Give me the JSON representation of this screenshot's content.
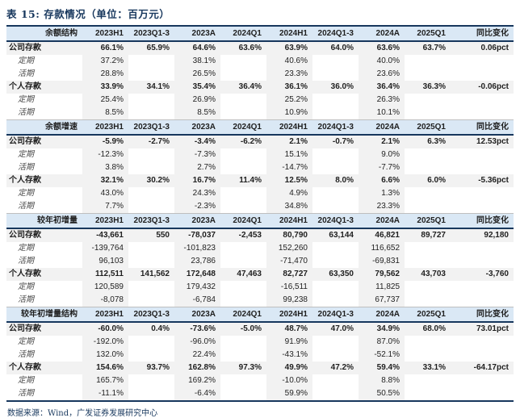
{
  "title": "表 15: 存款情况（单位：百万元）",
  "footer": {
    "text": "数据来源：Wind，广发证券发展研究中心"
  },
  "colors": {
    "title_navy": "#17375D",
    "header_band_blue": "#DAE8F5",
    "stripe_gray": "#F2F2F2",
    "rule_navy": "#17375D"
  },
  "table": {
    "columns": [
      "2023H1",
      "2023Q1-3",
      "2023A",
      "2024Q1",
      "2024H1",
      "2024Q1-3",
      "2024A",
      "2025Q1",
      "同比变化"
    ],
    "striped_columns": [
      0,
      2,
      4,
      6
    ],
    "sections": [
      {
        "label": "余额结构",
        "rows": [
          {
            "label": "公司存款",
            "bold": true,
            "values": [
              "66.1%",
              "65.9%",
              "64.6%",
              "63.6%",
              "63.9%",
              "64.0%",
              "63.6%",
              "63.7%",
              "0.06pct"
            ]
          },
          {
            "label": "定期",
            "bold": false,
            "values": [
              "37.2%",
              "",
              "38.1%",
              "",
              "40.6%",
              "",
              "40.0%",
              "",
              ""
            ]
          },
          {
            "label": "活期",
            "bold": false,
            "values": [
              "28.8%",
              "",
              "26.5%",
              "",
              "23.3%",
              "",
              "23.6%",
              "",
              ""
            ]
          },
          {
            "label": "个人存款",
            "bold": true,
            "values": [
              "33.9%",
              "34.1%",
              "35.4%",
              "36.4%",
              "36.1%",
              "36.0%",
              "36.4%",
              "36.3%",
              "-0.06pct"
            ]
          },
          {
            "label": "定期",
            "bold": false,
            "values": [
              "25.4%",
              "",
              "26.9%",
              "",
              "25.2%",
              "",
              "26.3%",
              "",
              ""
            ]
          },
          {
            "label": "活期",
            "bold": false,
            "values": [
              "8.5%",
              "",
              "8.5%",
              "",
              "10.9%",
              "",
              "10.1%",
              "",
              ""
            ]
          }
        ]
      },
      {
        "label": "余额增速",
        "rows": [
          {
            "label": "公司存款",
            "bold": true,
            "values": [
              "-5.9%",
              "-2.7%",
              "-3.4%",
              "-6.2%",
              "2.1%",
              "-0.7%",
              "2.1%",
              "6.3%",
              "12.53pct"
            ]
          },
          {
            "label": "定期",
            "bold": false,
            "values": [
              "-12.3%",
              "",
              "-7.3%",
              "",
              "15.1%",
              "",
              "9.0%",
              "",
              ""
            ]
          },
          {
            "label": "活期",
            "bold": false,
            "values": [
              "3.8%",
              "",
              "2.7%",
              "",
              "-14.7%",
              "",
              "-7.7%",
              "",
              ""
            ]
          },
          {
            "label": "个人存款",
            "bold": true,
            "values": [
              "32.1%",
              "30.2%",
              "16.7%",
              "11.4%",
              "12.5%",
              "8.0%",
              "6.6%",
              "6.0%",
              "-5.36pct"
            ]
          },
          {
            "label": "定期",
            "bold": false,
            "values": [
              "43.0%",
              "",
              "24.3%",
              "",
              "4.9%",
              "",
              "1.3%",
              "",
              ""
            ]
          },
          {
            "label": "活期",
            "bold": false,
            "values": [
              "7.7%",
              "",
              "-2.3%",
              "",
              "34.8%",
              "",
              "23.3%",
              "",
              ""
            ]
          }
        ]
      },
      {
        "label": "较年初增量",
        "rows": [
          {
            "label": "公司存款",
            "bold": true,
            "values": [
              "-43,661",
              "550",
              "-78,037",
              "-2,453",
              "80,790",
              "63,144",
              "46,821",
              "89,727",
              "92,180"
            ]
          },
          {
            "label": "定期",
            "bold": false,
            "values": [
              "-139,764",
              "",
              "-101,823",
              "",
              "152,260",
              "",
              "116,652",
              "",
              ""
            ]
          },
          {
            "label": "活期",
            "bold": false,
            "values": [
              "96,103",
              "",
              "23,786",
              "",
              "-71,470",
              "",
              "-69,831",
              "",
              ""
            ]
          },
          {
            "label": "个人存款",
            "bold": true,
            "values": [
              "112,511",
              "141,562",
              "172,648",
              "47,463",
              "82,727",
              "63,350",
              "79,562",
              "43,703",
              "-3,760"
            ]
          },
          {
            "label": "定期",
            "bold": false,
            "values": [
              "120,589",
              "",
              "179,432",
              "",
              "-16,511",
              "",
              "11,825",
              "",
              ""
            ]
          },
          {
            "label": "活期",
            "bold": false,
            "values": [
              "-8,078",
              "",
              "-6,784",
              "",
              "99,238",
              "",
              "67,737",
              "",
              ""
            ]
          }
        ]
      },
      {
        "label": "较年初增量结构",
        "rows": [
          {
            "label": "公司存款",
            "bold": true,
            "values": [
              "-60.0%",
              "0.4%",
              "-73.6%",
              "-5.0%",
              "48.7%",
              "47.0%",
              "34.9%",
              "68.0%",
              "73.01pct"
            ]
          },
          {
            "label": "定期",
            "bold": false,
            "values": [
              "-192.0%",
              "",
              "-96.0%",
              "",
              "91.9%",
              "",
              "87.0%",
              "",
              ""
            ]
          },
          {
            "label": "活期",
            "bold": false,
            "values": [
              "132.0%",
              "",
              "22.4%",
              "",
              "-43.1%",
              "",
              "-52.1%",
              "",
              ""
            ]
          },
          {
            "label": "个人存款",
            "bold": true,
            "values": [
              "154.6%",
              "93.7%",
              "162.8%",
              "97.3%",
              "49.9%",
              "47.2%",
              "59.4%",
              "33.1%",
              "-64.17pct"
            ]
          },
          {
            "label": "定期",
            "bold": false,
            "values": [
              "165.7%",
              "",
              "169.2%",
              "",
              "-10.0%",
              "",
              "8.8%",
              "",
              ""
            ]
          },
          {
            "label": "活期",
            "bold": false,
            "values": [
              "-11.1%",
              "",
              "-6.4%",
              "",
              "59.9%",
              "",
              "50.5%",
              "",
              ""
            ]
          }
        ]
      }
    ]
  }
}
